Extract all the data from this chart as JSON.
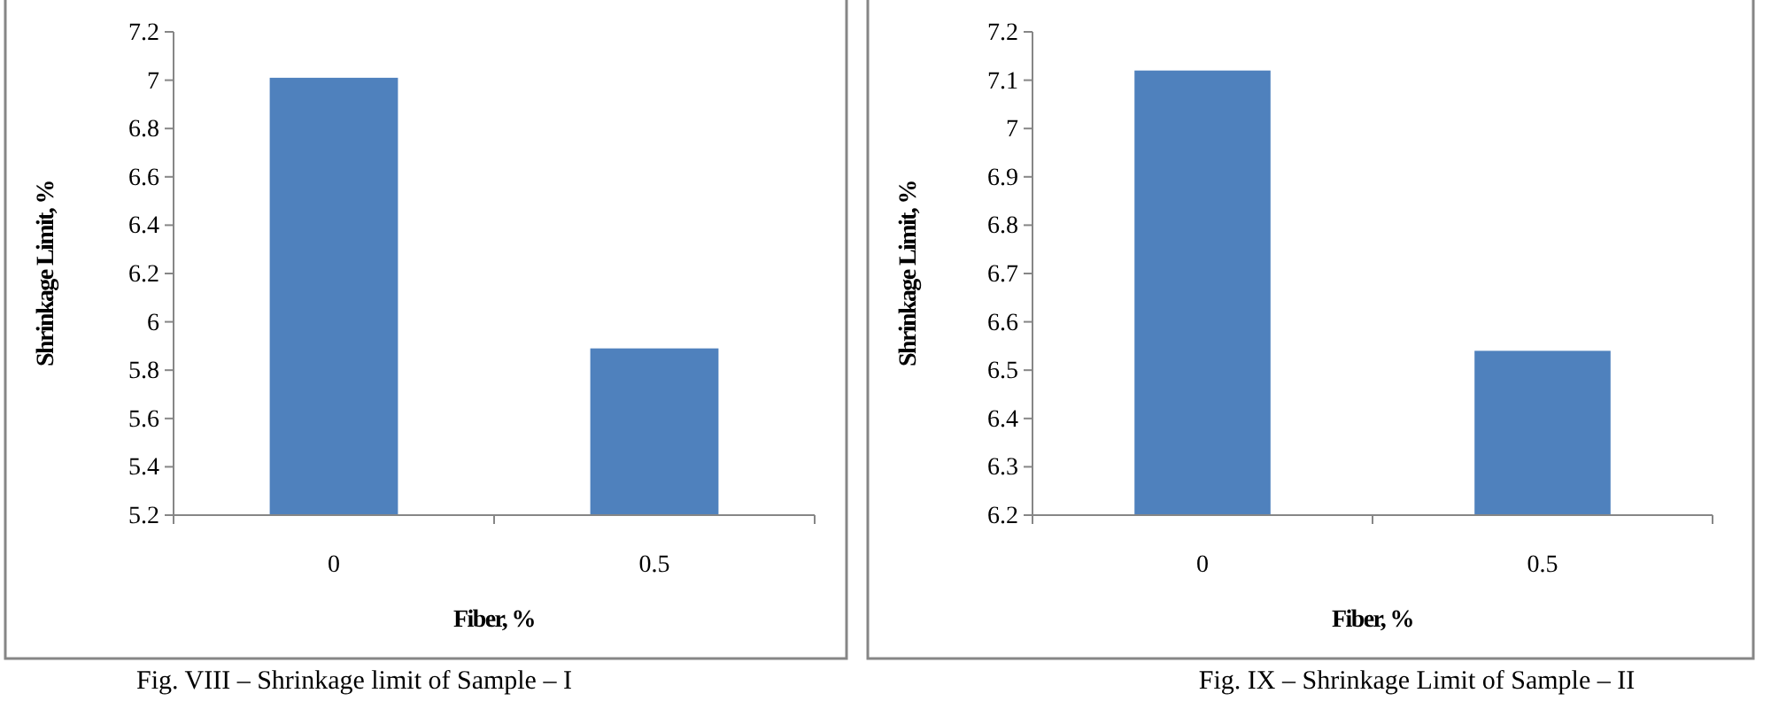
{
  "chart_data": [
    {
      "type": "bar",
      "xlabel": "Fiber, %",
      "ylabel": "Shrinkage Limit, %",
      "categories": [
        "0",
        "0.5"
      ],
      "values": [
        7.01,
        5.89
      ],
      "color": "#4f81bd",
      "ylim": [
        5.2,
        7.2
      ],
      "yticks": [
        5.2,
        5.4,
        5.6,
        5.8,
        6,
        6.2,
        6.4,
        6.6,
        6.8,
        7,
        7.2
      ],
      "grid": false,
      "annotations": [
        "Fig. VIII – Shrinkage limit of Sample – I"
      ]
    },
    {
      "type": "bar",
      "xlabel": "Fiber, %",
      "ylabel": "Shrinkage Limit, %",
      "categories": [
        "0",
        "0.5"
      ],
      "values": [
        7.12,
        6.54
      ],
      "color": "#4f81bd",
      "ylim": [
        6.2,
        7.2
      ],
      "yticks": [
        6.2,
        6.3,
        6.4,
        6.5,
        6.6,
        6.7,
        6.8,
        6.9,
        7,
        7.1,
        7.2
      ],
      "grid": false,
      "annotations": [
        "Fig. IX – Shrinkage Limit of Sample – II"
      ]
    }
  ]
}
